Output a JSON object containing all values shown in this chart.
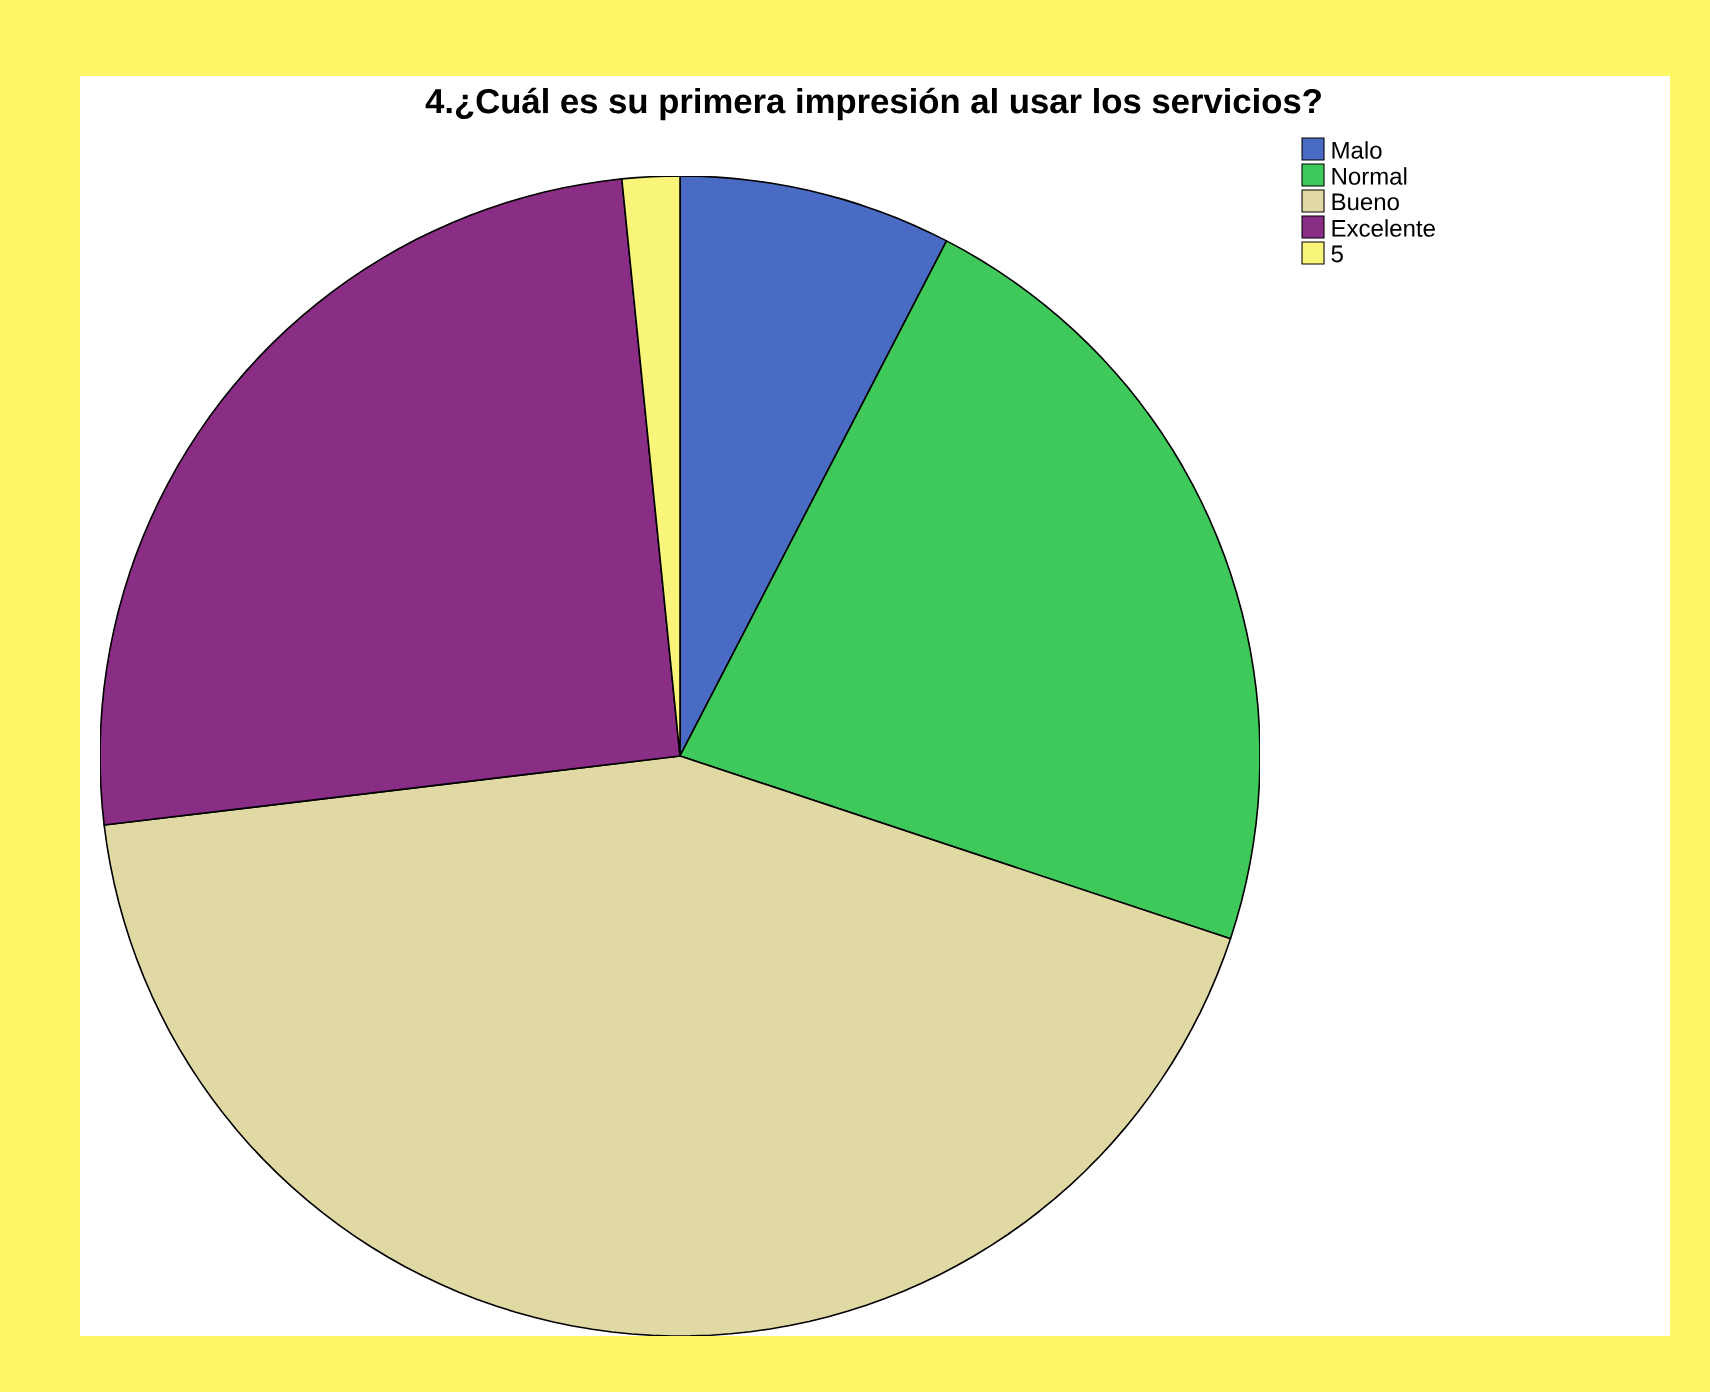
{
  "chart_data": {
    "type": "pie",
    "title": "4.¿Cuál es su primera impresión al usar los servicios?",
    "categories": [
      "Malo",
      "Normal",
      "Bueno",
      "Excelente",
      "5"
    ],
    "values": [
      7.6,
      22.5,
      43.0,
      25.3,
      1.6
    ],
    "colors": [
      "#4a6bc4",
      "#3ec95a",
      "#e0d9a3",
      "#8a2d84",
      "#f9f57a"
    ],
    "legend": "top right"
  }
}
